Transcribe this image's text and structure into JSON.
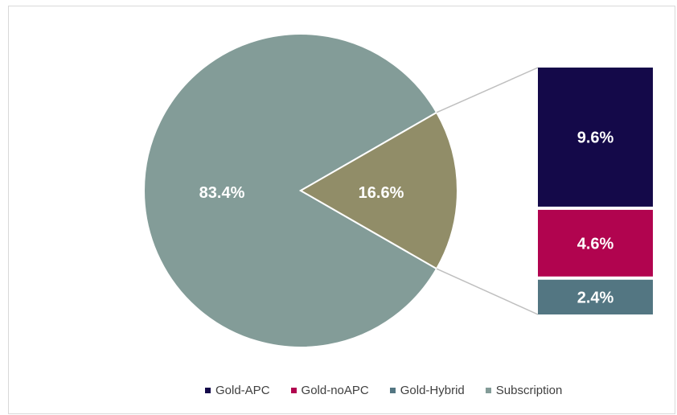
{
  "chart_data": {
    "type": "pie",
    "pie": {
      "slices": [
        {
          "label": "83.4%",
          "value": 83.4,
          "color": "#839c98"
        },
        {
          "label": "16.6%",
          "value": 16.6,
          "color": "#918d68"
        }
      ]
    },
    "breakdown_bar": {
      "segments": [
        {
          "name": "Gold-APC",
          "label": "9.6%",
          "value": 9.6,
          "color": "#140949"
        },
        {
          "name": "Gold-noAPC",
          "label": "4.6%",
          "value": 4.6,
          "color": "#b1044f"
        },
        {
          "name": "Gold-Hybrid",
          "label": "2.4%",
          "value": 2.4,
          "color": "#537682"
        }
      ]
    },
    "legend": [
      {
        "name": "Gold-APC",
        "color": "#140949"
      },
      {
        "name": "Gold-noAPC",
        "color": "#b1044f"
      },
      {
        "name": "Gold-Hybrid",
        "color": "#537682"
      },
      {
        "name": "Subscription",
        "color": "#839c98"
      }
    ],
    "connector_color": "#bfbfbf"
  }
}
